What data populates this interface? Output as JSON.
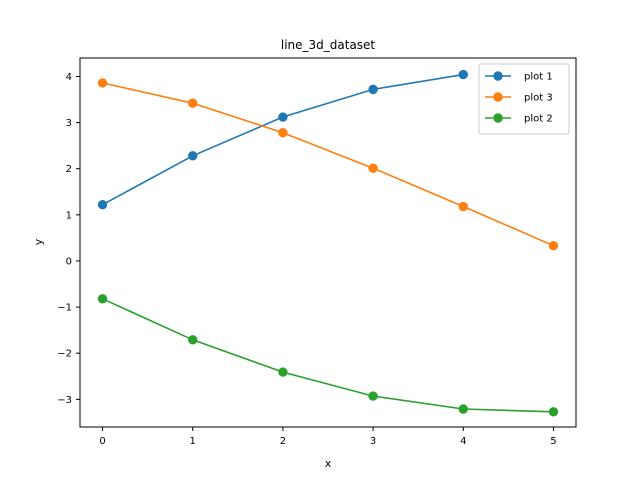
{
  "chart_data": {
    "type": "line",
    "title": "line_3d_dataset",
    "xlabel": "x",
    "ylabel": "y",
    "xlim": [
      -0.25,
      5.25
    ],
    "ylim": [
      -3.6,
      4.4
    ],
    "xticks": [
      0,
      1,
      2,
      3,
      4,
      5
    ],
    "xtick_labels": [
      "0",
      "1",
      "2",
      "3",
      "4",
      "5"
    ],
    "yticks": [
      -3,
      -2,
      -1,
      0,
      1,
      2,
      3,
      4
    ],
    "ytick_labels": [
      "−3",
      "−2",
      "−1",
      "0",
      "1",
      "2",
      "3",
      "4"
    ],
    "grid": false,
    "legend_position": "top-right",
    "series": [
      {
        "name": "plot 1",
        "color": "#1f77b4",
        "x": [
          0,
          1,
          2,
          3,
          4
        ],
        "y": [
          1.22,
          2.28,
          3.12,
          3.72,
          4.04
        ]
      },
      {
        "name": "plot 3",
        "color": "#ff7f0e",
        "x": [
          0,
          1,
          2,
          3,
          4,
          5
        ],
        "y": [
          3.86,
          3.42,
          2.78,
          2.01,
          1.18,
          0.33
        ]
      },
      {
        "name": "plot 2",
        "color": "#2ca02c",
        "x": [
          0,
          1,
          2,
          3,
          4,
          5
        ],
        "y": [
          -0.82,
          -1.71,
          -2.41,
          -2.93,
          -3.21,
          -3.27
        ]
      }
    ]
  }
}
